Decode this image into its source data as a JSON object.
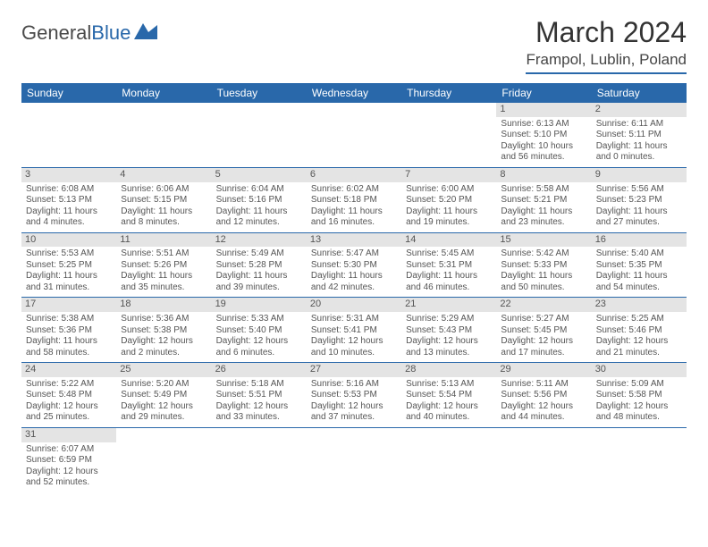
{
  "logo": {
    "text1": "General",
    "text2": "Blue"
  },
  "title": "March 2024",
  "location": "Frampol, Lublin, Poland",
  "colors": {
    "accent": "#2968aa",
    "dayHeaderBg": "#e4e4e4",
    "text": "#555555"
  },
  "dayHeaders": [
    "Sunday",
    "Monday",
    "Tuesday",
    "Wednesday",
    "Thursday",
    "Friday",
    "Saturday"
  ],
  "weeks": [
    [
      {
        "n": "",
        "sr": "",
        "ss": "",
        "dl1": "",
        "dl2": "",
        "empty": true
      },
      {
        "n": "",
        "sr": "",
        "ss": "",
        "dl1": "",
        "dl2": "",
        "empty": true
      },
      {
        "n": "",
        "sr": "",
        "ss": "",
        "dl1": "",
        "dl2": "",
        "empty": true
      },
      {
        "n": "",
        "sr": "",
        "ss": "",
        "dl1": "",
        "dl2": "",
        "empty": true
      },
      {
        "n": "",
        "sr": "",
        "ss": "",
        "dl1": "",
        "dl2": "",
        "empty": true
      },
      {
        "n": "1",
        "sr": "Sunrise: 6:13 AM",
        "ss": "Sunset: 5:10 PM",
        "dl1": "Daylight: 10 hours",
        "dl2": "and 56 minutes."
      },
      {
        "n": "2",
        "sr": "Sunrise: 6:11 AM",
        "ss": "Sunset: 5:11 PM",
        "dl1": "Daylight: 11 hours",
        "dl2": "and 0 minutes."
      }
    ],
    [
      {
        "n": "3",
        "sr": "Sunrise: 6:08 AM",
        "ss": "Sunset: 5:13 PM",
        "dl1": "Daylight: 11 hours",
        "dl2": "and 4 minutes."
      },
      {
        "n": "4",
        "sr": "Sunrise: 6:06 AM",
        "ss": "Sunset: 5:15 PM",
        "dl1": "Daylight: 11 hours",
        "dl2": "and 8 minutes."
      },
      {
        "n": "5",
        "sr": "Sunrise: 6:04 AM",
        "ss": "Sunset: 5:16 PM",
        "dl1": "Daylight: 11 hours",
        "dl2": "and 12 minutes."
      },
      {
        "n": "6",
        "sr": "Sunrise: 6:02 AM",
        "ss": "Sunset: 5:18 PM",
        "dl1": "Daylight: 11 hours",
        "dl2": "and 16 minutes."
      },
      {
        "n": "7",
        "sr": "Sunrise: 6:00 AM",
        "ss": "Sunset: 5:20 PM",
        "dl1": "Daylight: 11 hours",
        "dl2": "and 19 minutes."
      },
      {
        "n": "8",
        "sr": "Sunrise: 5:58 AM",
        "ss": "Sunset: 5:21 PM",
        "dl1": "Daylight: 11 hours",
        "dl2": "and 23 minutes."
      },
      {
        "n": "9",
        "sr": "Sunrise: 5:56 AM",
        "ss": "Sunset: 5:23 PM",
        "dl1": "Daylight: 11 hours",
        "dl2": "and 27 minutes."
      }
    ],
    [
      {
        "n": "10",
        "sr": "Sunrise: 5:53 AM",
        "ss": "Sunset: 5:25 PM",
        "dl1": "Daylight: 11 hours",
        "dl2": "and 31 minutes."
      },
      {
        "n": "11",
        "sr": "Sunrise: 5:51 AM",
        "ss": "Sunset: 5:26 PM",
        "dl1": "Daylight: 11 hours",
        "dl2": "and 35 minutes."
      },
      {
        "n": "12",
        "sr": "Sunrise: 5:49 AM",
        "ss": "Sunset: 5:28 PM",
        "dl1": "Daylight: 11 hours",
        "dl2": "and 39 minutes."
      },
      {
        "n": "13",
        "sr": "Sunrise: 5:47 AM",
        "ss": "Sunset: 5:30 PM",
        "dl1": "Daylight: 11 hours",
        "dl2": "and 42 minutes."
      },
      {
        "n": "14",
        "sr": "Sunrise: 5:45 AM",
        "ss": "Sunset: 5:31 PM",
        "dl1": "Daylight: 11 hours",
        "dl2": "and 46 minutes."
      },
      {
        "n": "15",
        "sr": "Sunrise: 5:42 AM",
        "ss": "Sunset: 5:33 PM",
        "dl1": "Daylight: 11 hours",
        "dl2": "and 50 minutes."
      },
      {
        "n": "16",
        "sr": "Sunrise: 5:40 AM",
        "ss": "Sunset: 5:35 PM",
        "dl1": "Daylight: 11 hours",
        "dl2": "and 54 minutes."
      }
    ],
    [
      {
        "n": "17",
        "sr": "Sunrise: 5:38 AM",
        "ss": "Sunset: 5:36 PM",
        "dl1": "Daylight: 11 hours",
        "dl2": "and 58 minutes."
      },
      {
        "n": "18",
        "sr": "Sunrise: 5:36 AM",
        "ss": "Sunset: 5:38 PM",
        "dl1": "Daylight: 12 hours",
        "dl2": "and 2 minutes."
      },
      {
        "n": "19",
        "sr": "Sunrise: 5:33 AM",
        "ss": "Sunset: 5:40 PM",
        "dl1": "Daylight: 12 hours",
        "dl2": "and 6 minutes."
      },
      {
        "n": "20",
        "sr": "Sunrise: 5:31 AM",
        "ss": "Sunset: 5:41 PM",
        "dl1": "Daylight: 12 hours",
        "dl2": "and 10 minutes."
      },
      {
        "n": "21",
        "sr": "Sunrise: 5:29 AM",
        "ss": "Sunset: 5:43 PM",
        "dl1": "Daylight: 12 hours",
        "dl2": "and 13 minutes."
      },
      {
        "n": "22",
        "sr": "Sunrise: 5:27 AM",
        "ss": "Sunset: 5:45 PM",
        "dl1": "Daylight: 12 hours",
        "dl2": "and 17 minutes."
      },
      {
        "n": "23",
        "sr": "Sunrise: 5:25 AM",
        "ss": "Sunset: 5:46 PM",
        "dl1": "Daylight: 12 hours",
        "dl2": "and 21 minutes."
      }
    ],
    [
      {
        "n": "24",
        "sr": "Sunrise: 5:22 AM",
        "ss": "Sunset: 5:48 PM",
        "dl1": "Daylight: 12 hours",
        "dl2": "and 25 minutes."
      },
      {
        "n": "25",
        "sr": "Sunrise: 5:20 AM",
        "ss": "Sunset: 5:49 PM",
        "dl1": "Daylight: 12 hours",
        "dl2": "and 29 minutes."
      },
      {
        "n": "26",
        "sr": "Sunrise: 5:18 AM",
        "ss": "Sunset: 5:51 PM",
        "dl1": "Daylight: 12 hours",
        "dl2": "and 33 minutes."
      },
      {
        "n": "27",
        "sr": "Sunrise: 5:16 AM",
        "ss": "Sunset: 5:53 PM",
        "dl1": "Daylight: 12 hours",
        "dl2": "and 37 minutes."
      },
      {
        "n": "28",
        "sr": "Sunrise: 5:13 AM",
        "ss": "Sunset: 5:54 PM",
        "dl1": "Daylight: 12 hours",
        "dl2": "and 40 minutes."
      },
      {
        "n": "29",
        "sr": "Sunrise: 5:11 AM",
        "ss": "Sunset: 5:56 PM",
        "dl1": "Daylight: 12 hours",
        "dl2": "and 44 minutes."
      },
      {
        "n": "30",
        "sr": "Sunrise: 5:09 AM",
        "ss": "Sunset: 5:58 PM",
        "dl1": "Daylight: 12 hours",
        "dl2": "and 48 minutes."
      }
    ],
    [
      {
        "n": "31",
        "sr": "Sunrise: 6:07 AM",
        "ss": "Sunset: 6:59 PM",
        "dl1": "Daylight: 12 hours",
        "dl2": "and 52 minutes."
      },
      {
        "n": "",
        "sr": "",
        "ss": "",
        "dl1": "",
        "dl2": "",
        "empty": true
      },
      {
        "n": "",
        "sr": "",
        "ss": "",
        "dl1": "",
        "dl2": "",
        "empty": true
      },
      {
        "n": "",
        "sr": "",
        "ss": "",
        "dl1": "",
        "dl2": "",
        "empty": true
      },
      {
        "n": "",
        "sr": "",
        "ss": "",
        "dl1": "",
        "dl2": "",
        "empty": true
      },
      {
        "n": "",
        "sr": "",
        "ss": "",
        "dl1": "",
        "dl2": "",
        "empty": true
      },
      {
        "n": "",
        "sr": "",
        "ss": "",
        "dl1": "",
        "dl2": "",
        "empty": true
      }
    ]
  ]
}
